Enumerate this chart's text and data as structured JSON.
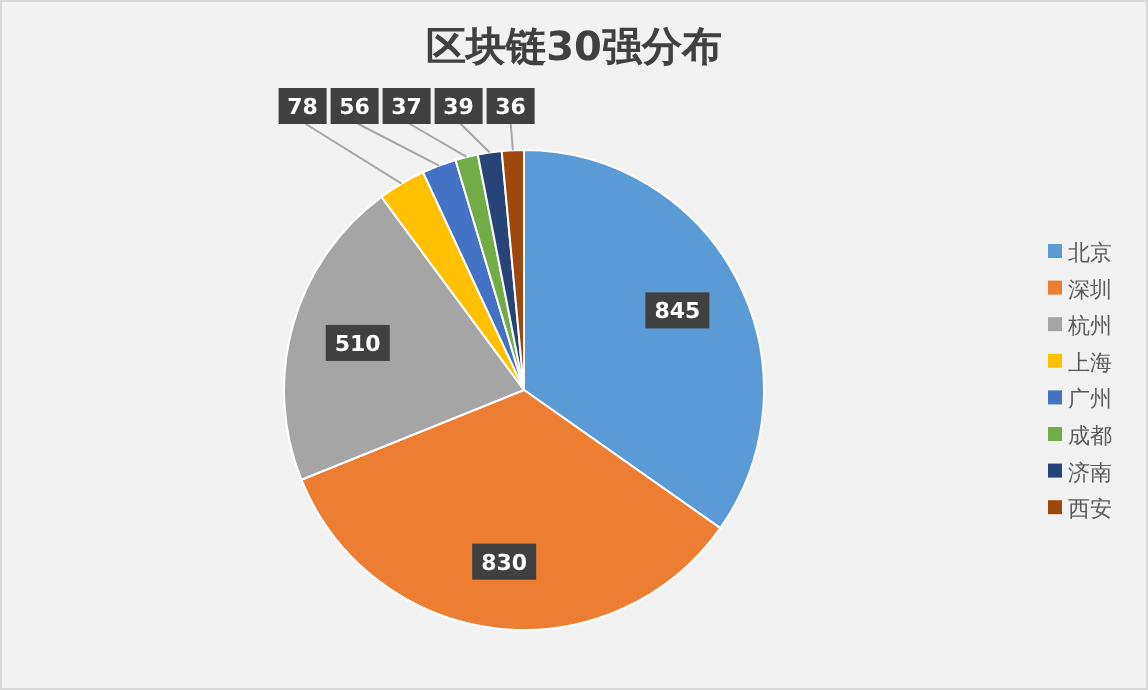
{
  "chart_data": {
    "type": "pie",
    "title": "区块链30强分布",
    "categories": [
      "北京",
      "深圳",
      "杭州",
      "上海",
      "广州",
      "成都",
      "济南",
      "西安"
    ],
    "values": [
      845,
      830,
      510,
      78,
      56,
      37,
      39,
      36
    ],
    "colors": [
      "#5b9bd5",
      "#ed7d31",
      "#a5a5a5",
      "#ffc000",
      "#4472c4",
      "#70ad47",
      "#264478",
      "#9e480e"
    ],
    "data_labels": true,
    "legend": "right"
  }
}
